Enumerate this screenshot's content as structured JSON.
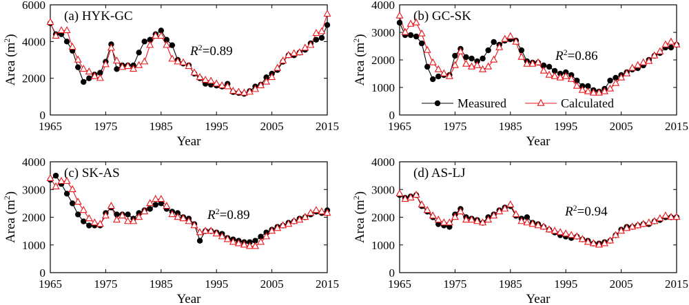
{
  "figure": {
    "series_names": [
      "Measured",
      "Calculated"
    ],
    "colors": {
      "measured": "#000000",
      "calculated": "#e8161b"
    },
    "r2_prefix": "R",
    "r2_sup": "2"
  },
  "chart_data": [
    {
      "type": "line",
      "title": "(a) HYK-GC",
      "xlabel": "Year",
      "ylabel": "Area (m",
      "ylabel_sup": "2",
      "ylabel_end": ")",
      "xlim": [
        1965,
        2015
      ],
      "ylim": [
        0,
        6000
      ],
      "xticks": [
        1965,
        1975,
        1985,
        1995,
        2005,
        2015
      ],
      "yticks": [
        0,
        2000,
        4000,
        6000
      ],
      "r2_value": "=0.89",
      "series": [
        {
          "name": "Measured",
          "x": [
            1965,
            1966,
            1967,
            1968,
            1969,
            1970,
            1971,
            1972,
            1973,
            1974,
            1975,
            1976,
            1977,
            1978,
            1979,
            1980,
            1981,
            1982,
            1983,
            1984,
            1985,
            1986,
            1987,
            1988,
            1989,
            1990,
            1991,
            1992,
            1993,
            1994,
            1995,
            1996,
            1997,
            1998,
            1999,
            2000,
            2001,
            2002,
            2003,
            2004,
            2005,
            2006,
            2007,
            2008,
            2009,
            2010,
            2011,
            2012,
            2013,
            2014,
            2015
          ],
          "y": [
            5000,
            4400,
            4400,
            4000,
            3500,
            2600,
            1800,
            2000,
            2200,
            2300,
            2900,
            3850,
            2500,
            2700,
            2700,
            2700,
            3400,
            4000,
            4100,
            4400,
            4600,
            4100,
            3800,
            3000,
            2800,
            2700,
            2250,
            2000,
            1700,
            1650,
            1600,
            1550,
            1700,
            1250,
            1200,
            1150,
            1300,
            1550,
            1650,
            2050,
            2250,
            2450,
            2900,
            3250,
            3250,
            3400,
            3550,
            3900,
            4100,
            4200,
            4900
          ]
        },
        {
          "name": "Calculated",
          "x": [
            1965,
            1966,
            1967,
            1968,
            1969,
            1970,
            1971,
            1972,
            1973,
            1974,
            1975,
            1976,
            1977,
            1978,
            1979,
            1980,
            1981,
            1982,
            1983,
            1984,
            1985,
            1986,
            1987,
            1988,
            1989,
            1990,
            1991,
            1992,
            1993,
            1994,
            1995,
            1996,
            1997,
            1998,
            1999,
            2000,
            2001,
            2002,
            2003,
            2004,
            2005,
            2006,
            2007,
            2008,
            2009,
            2010,
            2011,
            2012,
            2013,
            2014,
            2015
          ],
          "y": [
            5050,
            4300,
            4600,
            4600,
            3700,
            3000,
            2500,
            2350,
            2100,
            2000,
            2750,
            3650,
            2950,
            2600,
            2650,
            2500,
            2700,
            2900,
            3800,
            4300,
            4300,
            3800,
            3050,
            2900,
            2850,
            2650,
            2300,
            2050,
            1900,
            1850,
            1700,
            1600,
            1550,
            1300,
            1250,
            1200,
            1250,
            1400,
            1600,
            1800,
            2050,
            2550,
            2950,
            3250,
            3350,
            3400,
            3650,
            3800,
            4450,
            4550,
            5500
          ]
        }
      ]
    },
    {
      "type": "line",
      "title": "(b) GC-SK",
      "xlabel": "Year",
      "ylabel": "Area (m",
      "ylabel_sup": "2",
      "ylabel_end": ")",
      "xlim": [
        1965,
        2015
      ],
      "ylim": [
        0,
        4000
      ],
      "xticks": [
        1965,
        1975,
        1985,
        1995,
        2005,
        2015
      ],
      "yticks": [
        0,
        1000,
        2000,
        3000,
        4000
      ],
      "r2_value": "=0.86",
      "legend": {
        "measured": "Measured",
        "calculated": "Calculated"
      },
      "series": [
        {
          "name": "Measured",
          "x": [
            1965,
            1966,
            1967,
            1968,
            1969,
            1970,
            1971,
            1972,
            1973,
            1974,
            1975,
            1976,
            1977,
            1978,
            1979,
            1980,
            1981,
            1982,
            1983,
            1984,
            1985,
            1986,
            1987,
            1988,
            1989,
            1990,
            1991,
            1992,
            1993,
            1994,
            1995,
            1996,
            1997,
            1998,
            1999,
            2000,
            2001,
            2002,
            2003,
            2004,
            2005,
            2006,
            2007,
            2008,
            2009,
            2010,
            2011,
            2012,
            2013,
            2014,
            2015
          ],
          "y": [
            3350,
            2900,
            2900,
            2850,
            2600,
            1750,
            1300,
            1400,
            1450,
            1450,
            2150,
            2400,
            2100,
            2050,
            1950,
            2050,
            2350,
            2650,
            2550,
            2700,
            2750,
            2700,
            2350,
            1950,
            1900,
            1900,
            1800,
            1750,
            1600,
            1500,
            1550,
            1450,
            1250,
            1050,
            1050,
            900,
            850,
            950,
            1250,
            1350,
            1450,
            1550,
            1650,
            1700,
            1800,
            2000,
            2150,
            2250,
            2450,
            2450,
            2550
          ]
        },
        {
          "name": "Calculated",
          "x": [
            1965,
            1966,
            1967,
            1968,
            1969,
            1970,
            1971,
            1972,
            1973,
            1974,
            1975,
            1976,
            1977,
            1978,
            1979,
            1980,
            1981,
            1982,
            1983,
            1984,
            1985,
            1986,
            1987,
            1988,
            1989,
            1990,
            1991,
            1992,
            1993,
            1994,
            1995,
            1996,
            1997,
            1998,
            1999,
            2000,
            2001,
            2002,
            2003,
            2004,
            2005,
            2006,
            2007,
            2008,
            2009,
            2010,
            2011,
            2012,
            2013,
            2014,
            2015
          ],
          "y": [
            3600,
            3000,
            3300,
            3350,
            2950,
            2350,
            1900,
            1650,
            1500,
            1400,
            1800,
            2300,
            1850,
            1750,
            1800,
            1650,
            1750,
            2000,
            2450,
            2750,
            2850,
            2650,
            2100,
            1850,
            1850,
            1900,
            1600,
            1450,
            1400,
            1350,
            1400,
            1300,
            1050,
            900,
            850,
            800,
            800,
            850,
            950,
            1150,
            1350,
            1500,
            1700,
            1800,
            1900,
            1950,
            2150,
            2300,
            2550,
            2650,
            2550
          ]
        }
      ]
    },
    {
      "type": "line",
      "title": "(c) SK-AS",
      "xlabel": "Year",
      "ylabel": "Area (m",
      "ylabel_sup": "2",
      "ylabel_end": ")",
      "xlim": [
        1965,
        2015
      ],
      "ylim": [
        0,
        4000
      ],
      "xticks": [
        1965,
        1975,
        1985,
        1995,
        2005,
        2015
      ],
      "yticks": [
        0,
        1000,
        2000,
        3000,
        4000
      ],
      "r2_value": "=0.89",
      "series": [
        {
          "name": "Measured",
          "x": [
            1965,
            1966,
            1967,
            1968,
            1969,
            1970,
            1971,
            1972,
            1973,
            1974,
            1975,
            1976,
            1977,
            1978,
            1979,
            1980,
            1981,
            1982,
            1983,
            1984,
            1985,
            1986,
            1987,
            1988,
            1989,
            1990,
            1991,
            1992,
            1993,
            1994,
            1995,
            1996,
            1997,
            1998,
            1999,
            2000,
            2001,
            2002,
            2003,
            2004,
            2005,
            2006,
            2007,
            2008,
            2009,
            2010,
            2011,
            2012,
            2013,
            2014,
            2015
          ],
          "y": [
            3350,
            3500,
            3200,
            2850,
            2500,
            2100,
            1850,
            1700,
            1700,
            1700,
            2150,
            2350,
            2100,
            2100,
            2100,
            1950,
            2150,
            2250,
            2300,
            2450,
            2500,
            2300,
            2200,
            2150,
            2000,
            1950,
            1750,
            1150,
            1500,
            1500,
            1450,
            1400,
            1250,
            1200,
            1150,
            1100,
            1100,
            1150,
            1300,
            1450,
            1550,
            1650,
            1700,
            1800,
            1850,
            1950,
            2000,
            2100,
            2200,
            2150,
            2250
          ]
        },
        {
          "name": "Calculated",
          "x": [
            1965,
            1966,
            1967,
            1968,
            1969,
            1970,
            1971,
            1972,
            1973,
            1974,
            1975,
            1976,
            1977,
            1978,
            1979,
            1980,
            1981,
            1982,
            1983,
            1984,
            1985,
            1986,
            1987,
            1988,
            1989,
            1990,
            1991,
            1992,
            1993,
            1994,
            1995,
            1996,
            1997,
            1998,
            1999,
            2000,
            2001,
            2002,
            2003,
            2004,
            2005,
            2006,
            2007,
            2008,
            2009,
            2010,
            2011,
            2012,
            2013,
            2014,
            2015
          ],
          "y": [
            3400,
            3100,
            3300,
            3300,
            3000,
            2550,
            2250,
            1950,
            1800,
            1750,
            2050,
            2400,
            1900,
            2050,
            1850,
            1850,
            2000,
            2200,
            2500,
            2650,
            2650,
            2400,
            2100,
            2000,
            1950,
            1850,
            1700,
            1450,
            1500,
            1500,
            1400,
            1300,
            1200,
            1100,
            1050,
            1000,
            950,
            950,
            1100,
            1300,
            1500,
            1600,
            1700,
            1750,
            1850,
            1900,
            2000,
            2150,
            2250,
            2200,
            2150
          ]
        }
      ]
    },
    {
      "type": "line",
      "title": "(d) AS-LJ",
      "xlabel": "Year",
      "ylabel": "Area (m",
      "ylabel_sup": "2",
      "ylabel_end": ")",
      "xlim": [
        1965,
        2015
      ],
      "ylim": [
        0,
        4000
      ],
      "xticks": [
        1965,
        1975,
        1985,
        1995,
        2005,
        2015
      ],
      "yticks": [
        0,
        1000,
        2000,
        3000,
        4000
      ],
      "r2_value": "=0.94",
      "series": [
        {
          "name": "Measured",
          "x": [
            1965,
            1966,
            1967,
            1968,
            1969,
            1970,
            1971,
            1972,
            1973,
            1974,
            1975,
            1976,
            1977,
            1978,
            1979,
            1980,
            1981,
            1982,
            1983,
            1984,
            1985,
            1986,
            1987,
            1988,
            1989,
            1990,
            1991,
            1992,
            1993,
            1994,
            1995,
            1996,
            1997,
            1998,
            1999,
            2000,
            2001,
            2002,
            2003,
            2004,
            2005,
            2006,
            2007,
            2008,
            2009,
            2010,
            2011,
            2012,
            2013,
            2014,
            2015
          ],
          "y": [
            2800,
            2700,
            2750,
            2800,
            2400,
            2200,
            2000,
            1750,
            1700,
            1650,
            2100,
            2300,
            2000,
            1950,
            1900,
            1800,
            2000,
            2100,
            2250,
            2350,
            2400,
            2050,
            1950,
            2000,
            1800,
            1750,
            1650,
            1550,
            1450,
            1350,
            1300,
            1250,
            1300,
            1200,
            1150,
            1050,
            1050,
            1100,
            1150,
            1350,
            1550,
            1650,
            1650,
            1700,
            1750,
            1750,
            1850,
            1900,
            2000,
            2000,
            2000
          ]
        },
        {
          "name": "Calculated",
          "x": [
            1965,
            1966,
            1967,
            1968,
            1969,
            1970,
            1971,
            1972,
            1973,
            1974,
            1975,
            1976,
            1977,
            1978,
            1979,
            1980,
            1981,
            1982,
            1983,
            1984,
            1985,
            1986,
            1987,
            1988,
            1989,
            1990,
            1991,
            1992,
            1993,
            1994,
            1995,
            1996,
            1997,
            1998,
            1999,
            2000,
            2001,
            2002,
            2003,
            2004,
            2005,
            2006,
            2007,
            2008,
            2009,
            2010,
            2011,
            2012,
            2013,
            2014,
            2015
          ],
          "y": [
            2850,
            2650,
            2700,
            2800,
            2450,
            2250,
            2050,
            1900,
            1800,
            1800,
            2000,
            2200,
            1900,
            1900,
            1850,
            1800,
            1900,
            2050,
            2200,
            2300,
            2450,
            2100,
            1850,
            1800,
            1750,
            1700,
            1650,
            1550,
            1500,
            1450,
            1400,
            1350,
            1300,
            1200,
            1100,
            1050,
            1000,
            1050,
            1150,
            1350,
            1500,
            1600,
            1650,
            1700,
            1750,
            1800,
            1850,
            1950,
            2050,
            2000,
            2000
          ]
        }
      ]
    }
  ]
}
